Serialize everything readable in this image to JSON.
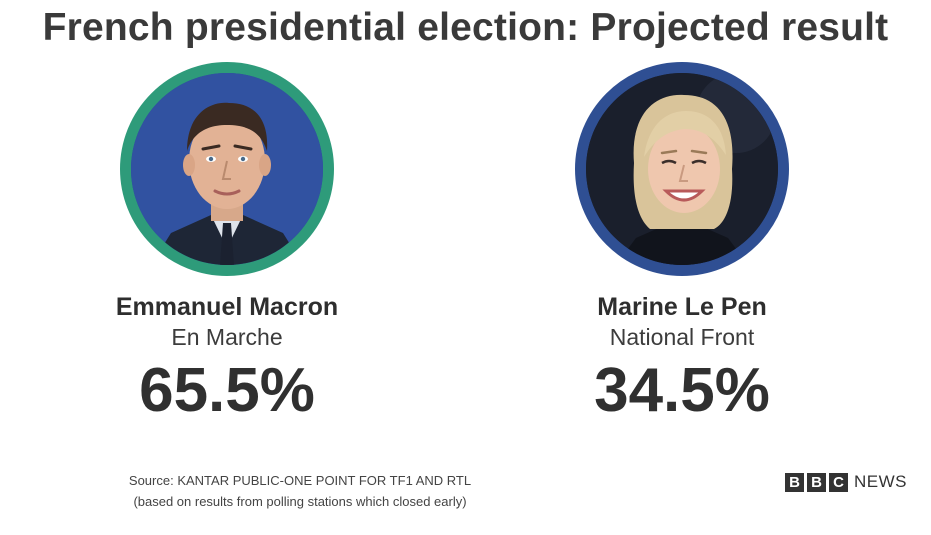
{
  "title": "French presidential election: Projected result",
  "candidates": [
    {
      "name": "Emmanuel Macron",
      "party": "En Marche",
      "percent": "65.5%",
      "ring_color": "#2e9b7a",
      "bg_color": "#2c4c9a"
    },
    {
      "name": "Marine Le Pen",
      "party": "National Front",
      "percent": "34.5%",
      "ring_color": "#2f4f93",
      "bg_color": "#1a1f2c"
    }
  ],
  "source": {
    "line1": "Source: KANTAR PUBLIC-ONE POINT FOR TF1 AND RTL",
    "line2": "(based on results from polling stations which closed early)"
  },
  "logo": {
    "letters": [
      "B",
      "B",
      "C"
    ],
    "word": "NEWS"
  }
}
